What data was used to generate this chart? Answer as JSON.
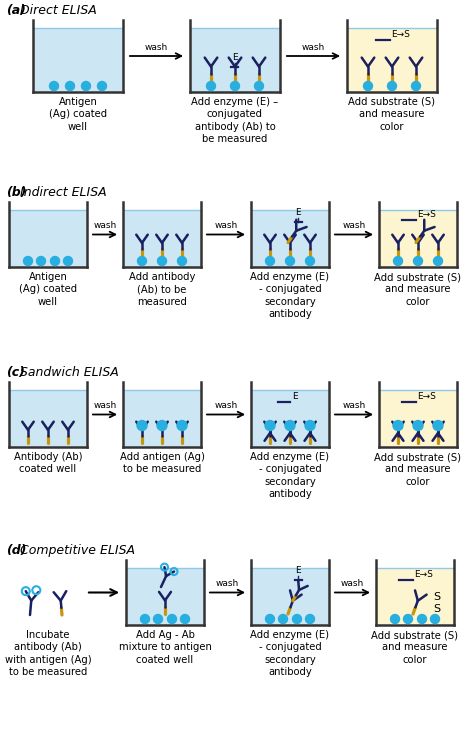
{
  "bg_color": "#ffffff",
  "water_color": "#cce6f4",
  "water_color_yellow": "#fdf5d0",
  "antibody_dark": "#1a2060",
  "antibody_gold": "#c8960a",
  "antigen_color": "#29aee0",
  "section_labels": [
    "(a) Direct ELISA",
    "(b) Indirect ELISA",
    "(c) Sandwich ELISA",
    "(d) Competitive ELISA"
  ],
  "section_fontsize": 9,
  "caption_fontsize": 7.2,
  "wash_fontsize": 6.5
}
